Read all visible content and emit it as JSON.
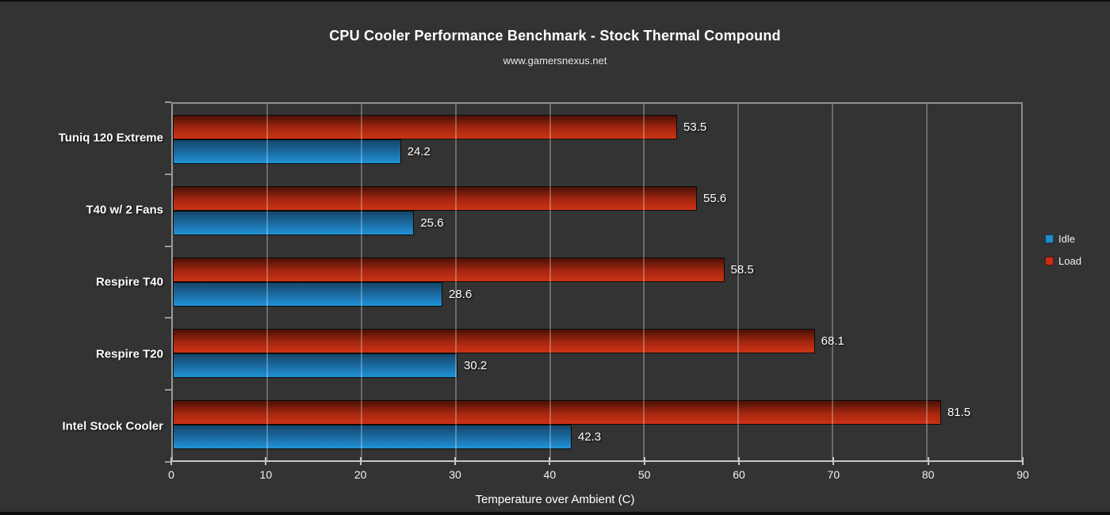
{
  "title": "CPU Cooler Performance Benchmark - Stock Thermal Compound",
  "subtitle": "www.gamersnexus.net",
  "chart_data": {
    "type": "bar",
    "orientation": "horizontal",
    "title": "CPU Cooler Performance Benchmark - Stock Thermal Compound",
    "subtitle": "www.gamersnexus.net",
    "xlabel": "Temperature over Ambient (C)",
    "xlim": [
      0,
      90
    ],
    "x_ticks": [
      0,
      10,
      20,
      30,
      40,
      50,
      60,
      70,
      80,
      90
    ],
    "grid": true,
    "legend_position": "right-center",
    "legend": [
      "Idle",
      "Load"
    ],
    "categories": [
      "Tuniq 120 Extreme",
      "T40 w/ 2 Fans",
      "Respire T40",
      "Respire T20",
      "Intel Stock Cooler"
    ],
    "series": [
      {
        "name": "Load",
        "color": "#c52f13",
        "gradient": [
          "#4a1107",
          "#a5260f",
          "#cd3315"
        ],
        "values": [
          53.5,
          55.6,
          58.5,
          68.1,
          81.5
        ]
      },
      {
        "name": "Idle",
        "color": "#1f8ccb",
        "gradient": [
          "#164669",
          "#1a6ea6",
          "#2193d8"
        ],
        "values": [
          24.2,
          25.6,
          28.6,
          30.2,
          42.3
        ]
      }
    ],
    "value_label_decimals": 1
  },
  "colors": {
    "background": "#333333",
    "text": "#ffffff",
    "gridline": "#8f8f8f",
    "axis": "#c6c6c6",
    "idle": "#1f8ccb",
    "load": "#c52f13"
  }
}
